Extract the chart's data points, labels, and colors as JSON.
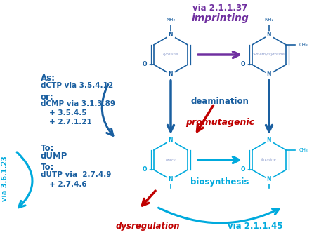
{
  "bg_color": "#ffffff",
  "blue_dark": "#1a5fa0",
  "blue_light": "#00aadd",
  "purple": "#7030a0",
  "red": "#c00000",
  "via_2137": "via 2.1.1.37",
  "imprinting": "imprinting",
  "deamination": "deamination",
  "promutagenic": "promutagenic",
  "biosynthesis": "biosynthesis",
  "dysregulation": "dysregulation",
  "via_2145": "via 2.1.1.45",
  "via_3623": "via 3.6.1.23",
  "cytosine_label": "cytosine",
  "methyl_cytosine_label": "5-methylcytosine",
  "uracil_label": "uracil",
  "thymine_label": "thymine",
  "left_lines": [
    [
      "As:",
      105,
      0
    ],
    [
      "dCTP via 3.5.4.12",
      117,
      0
    ],
    [
      "or:",
      132,
      0
    ],
    [
      "dCMP via 3.1.3.89",
      143,
      0
    ],
    [
      "+ 3.5.4.5",
      156,
      12
    ],
    [
      "+ 2.7.1.21",
      169,
      12
    ],
    [
      "To:",
      205,
      0
    ],
    [
      "dUMP",
      216,
      0
    ],
    [
      "To:",
      232,
      0
    ],
    [
      "dUTP via  2.7.4.9",
      244,
      0
    ],
    [
      "+ 2.7.4.6",
      258,
      12
    ]
  ]
}
